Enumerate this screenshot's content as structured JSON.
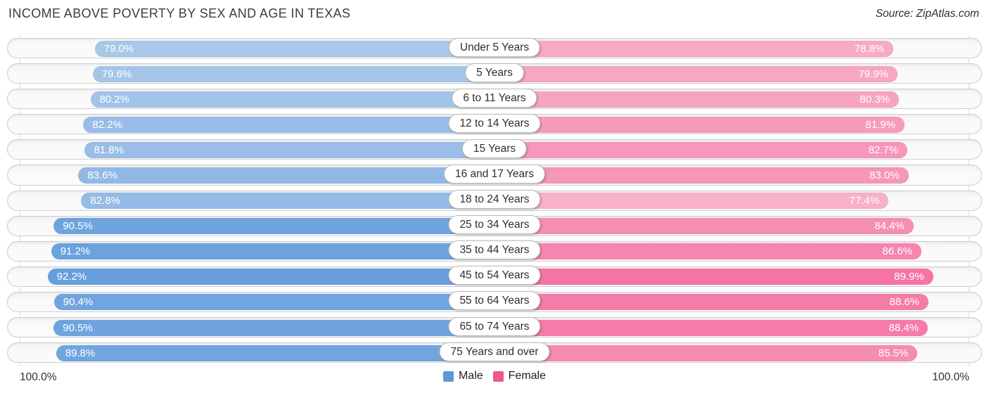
{
  "header": {
    "title": "INCOME ABOVE POVERTY BY SEX AND AGE IN TEXAS",
    "source": "Source: ZipAtlas.com"
  },
  "chart_data": {
    "type": "bar",
    "subtype": "diverging-horizontal",
    "title": "INCOME ABOVE POVERTY BY SEX AND AGE IN TEXAS",
    "categories": [
      "Under 5 Years",
      "5 Years",
      "6 to 11 Years",
      "12 to 14 Years",
      "15 Years",
      "16 and 17 Years",
      "18 to 24 Years",
      "25 to 34 Years",
      "35 to 44 Years",
      "45 to 54 Years",
      "55 to 64 Years",
      "65 to 74 Years",
      "75 Years and over"
    ],
    "series": [
      {
        "name": "Male",
        "color": "#5694d9",
        "values": [
          79.0,
          79.6,
          80.2,
          82.2,
          81.8,
          83.6,
          82.8,
          90.5,
          91.2,
          92.2,
          90.4,
          90.5,
          89.8
        ]
      },
      {
        "name": "Female",
        "color": "#f45993",
        "values": [
          78.8,
          79.9,
          80.3,
          81.9,
          82.7,
          83.0,
          77.4,
          84.4,
          86.6,
          89.9,
          88.6,
          88.4,
          85.5
        ]
      }
    ],
    "value_suffix": "%",
    "axis": {
      "left_label": "100.0%",
      "right_label": "100.0%",
      "max": 100.0
    },
    "legend": [
      {
        "label": "Male",
        "color": "#5b9bd5"
      },
      {
        "label": "Female",
        "color": "#f1568c"
      }
    ],
    "layout": {
      "grid": "edge-lines-only",
      "legend_position": "bottom-center",
      "opacity_scales_with_value": true
    }
  }
}
